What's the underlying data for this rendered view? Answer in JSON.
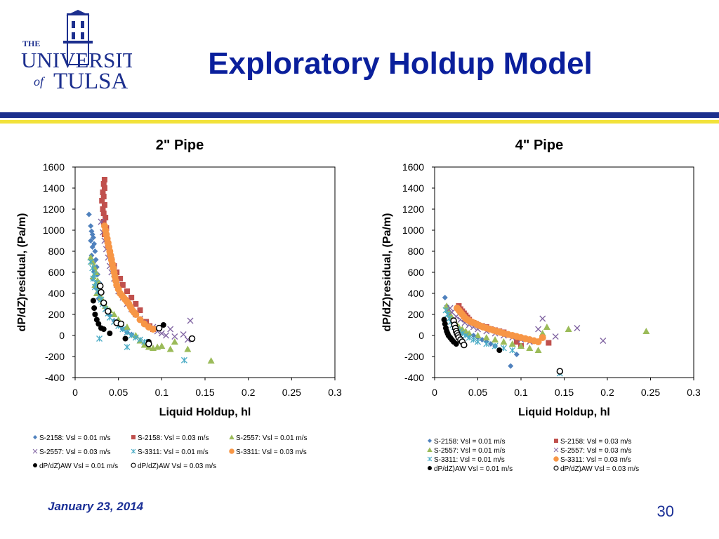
{
  "slide": {
    "title": "Exploratory Holdup Model",
    "date": "January 23, 2014",
    "page_number": "30",
    "logo": {
      "line1": "THE",
      "line2": "UNIVERSITY",
      "line3": "of",
      "line4": "TULSA"
    }
  },
  "colors": {
    "title": "#0a1f9c",
    "bar_navy": "#1c2f8e",
    "bar_yellow": "#f2e23a",
    "s2158_01": "#4f81bd",
    "s2158_03": "#c0504d",
    "s2557_01": "#9bbb59",
    "s2557_03": "#8064a2",
    "s3311_01": "#4bacc6",
    "s3311_03": "#f79646",
    "aw": "#000000"
  },
  "chart_data": [
    {
      "type": "scatter",
      "title": "2\" Pipe",
      "xlabel": "Liquid Holdup, hl",
      "ylabel": "dP/dZ)residual, (Pa/m)",
      "xlim": [
        0,
        0.3
      ],
      "ylim": [
        -400,
        1600
      ],
      "xticks": [
        "0",
        "0.05",
        "0.1",
        "0.15",
        "0.2",
        "0.25",
        "0.3"
      ],
      "yticks": [
        "-400",
        "-200",
        "0",
        "200",
        "400",
        "600",
        "800",
        "1000",
        "1200",
        "1400",
        "1600"
      ],
      "grid": false,
      "legend_position": "bottom",
      "series": [
        {
          "name": "S-2158: Vsl = 0.01 m/s",
          "marker": "diamond",
          "color": "#4f81bd",
          "x": [
            0.016,
            0.018,
            0.019,
            0.02,
            0.021,
            0.018,
            0.022,
            0.02,
            0.023,
            0.019,
            0.024,
            0.021,
            0.025,
            0.022,
            0.026,
            0.02,
            0.028,
            0.024,
            0.03,
            0.027,
            0.033,
            0.036,
            0.04,
            0.045,
            0.05,
            0.055,
            0.06,
            0.065,
            0.07
          ],
          "y": [
            1150,
            1040,
            990,
            960,
            930,
            900,
            870,
            840,
            800,
            760,
            720,
            690,
            650,
            610,
            580,
            540,
            500,
            450,
            400,
            350,
            290,
            240,
            190,
            140,
            100,
            60,
            30,
            10,
            -10
          ]
        },
        {
          "name": "S-2158: Vsl = 0.03 m/s",
          "marker": "square",
          "color": "#c0504d",
          "x": [
            0.034,
            0.033,
            0.034,
            0.032,
            0.033,
            0.031,
            0.034,
            0.032,
            0.033,
            0.035,
            0.033,
            0.036,
            0.034,
            0.037,
            0.038,
            0.04,
            0.042,
            0.045,
            0.048,
            0.052,
            0.055,
            0.06,
            0.065,
            0.07,
            0.075,
            0.082,
            0.086,
            0.09
          ],
          "y": [
            1480,
            1440,
            1400,
            1360,
            1320,
            1280,
            1240,
            1200,
            1160,
            1120,
            1080,
            1020,
            960,
            900,
            850,
            780,
            720,
            660,
            600,
            540,
            480,
            420,
            360,
            300,
            240,
            130,
            90,
            60
          ]
        },
        {
          "name": "S-2557: Vsl = 0.01 m/s",
          "marker": "triangle",
          "color": "#9bbb59",
          "x": [
            0.018,
            0.02,
            0.022,
            0.024,
            0.021,
            0.026,
            0.023,
            0.028,
            0.025,
            0.03,
            0.032,
            0.035,
            0.04,
            0.045,
            0.05,
            0.06,
            0.07,
            0.075,
            0.08,
            0.085,
            0.09,
            0.095,
            0.1,
            0.11,
            0.115,
            0.13,
            0.157
          ],
          "y": [
            740,
            700,
            650,
            600,
            560,
            520,
            480,
            440,
            400,
            360,
            320,
            280,
            240,
            200,
            150,
            80,
            0,
            -50,
            -90,
            -110,
            -120,
            -110,
            -100,
            -130,
            -60,
            -130,
            -240
          ]
        },
        {
          "name": "S-2557: Vsl = 0.03 m/s",
          "marker": "x",
          "color": "#8064a2",
          "x": [
            0.03,
            0.032,
            0.034,
            0.036,
            0.038,
            0.04,
            0.042,
            0.045,
            0.048,
            0.05,
            0.055,
            0.06,
            0.065,
            0.07,
            0.075,
            0.08,
            0.09,
            0.095,
            0.1,
            0.105,
            0.11,
            0.115,
            0.125,
            0.13,
            0.133
          ],
          "y": [
            1080,
            980,
            900,
            820,
            740,
            660,
            600,
            540,
            480,
            420,
            360,
            300,
            250,
            200,
            160,
            120,
            80,
            40,
            20,
            0,
            60,
            -10,
            10,
            -40,
            140
          ]
        },
        {
          "name": "S-3311: Vsl = 0.01 m/s",
          "marker": "star",
          "color": "#4bacc6",
          "x": [
            0.018,
            0.02,
            0.022,
            0.021,
            0.024,
            0.023,
            0.026,
            0.028,
            0.03,
            0.032,
            0.035,
            0.038,
            0.04,
            0.045,
            0.05,
            0.055,
            0.06,
            0.065,
            0.07,
            0.075,
            0.08,
            0.028,
            0.06,
            0.126
          ],
          "y": [
            700,
            640,
            580,
            540,
            500,
            460,
            420,
            380,
            340,
            300,
            250,
            210,
            170,
            130,
            90,
            60,
            30,
            0,
            -20,
            -40,
            -60,
            -30,
            -110,
            -235
          ]
        },
        {
          "name": "S-3311: Vsl = 0.03 m/s",
          "marker": "circle",
          "color": "#f79646",
          "x": [
            0.034,
            0.035,
            0.036,
            0.037,
            0.038,
            0.039,
            0.04,
            0.041,
            0.042,
            0.043,
            0.044,
            0.045,
            0.046,
            0.047,
            0.048,
            0.05,
            0.052,
            0.054,
            0.056,
            0.058,
            0.06,
            0.062,
            0.064,
            0.066,
            0.068,
            0.07,
            0.075,
            0.08,
            0.085,
            0.09
          ],
          "y": [
            1040,
            1000,
            960,
            920,
            880,
            840,
            800,
            760,
            720,
            680,
            640,
            600,
            560,
            520,
            480,
            440,
            400,
            380,
            360,
            340,
            320,
            300,
            270,
            240,
            220,
            200,
            150,
            110,
            80,
            60
          ]
        },
        {
          "name": "dP/dZ)AW Vsl = 0.01 m/s",
          "marker": "dot",
          "color": "#000000",
          "x": [
            0.021,
            0.022,
            0.023,
            0.025,
            0.027,
            0.03,
            0.033,
            0.04,
            0.058,
            0.085,
            0.102
          ],
          "y": [
            330,
            260,
            200,
            150,
            110,
            70,
            60,
            20,
            -30,
            -60,
            100
          ]
        },
        {
          "name": "dP/dZ)AW Vsl = 0.03 m/s",
          "marker": "ring",
          "color": "#000000",
          "x": [
            0.029,
            0.03,
            0.033,
            0.038,
            0.048,
            0.053,
            0.085,
            0.097,
            0.135
          ],
          "y": [
            470,
            410,
            310,
            230,
            120,
            110,
            -80,
            70,
            -30
          ]
        }
      ]
    },
    {
      "type": "scatter",
      "title": "4\" Pipe",
      "xlabel": "Liquid Holdup, hl",
      "ylabel": "dP/dZ)residual, (Pa/m)",
      "xlim": [
        0,
        0.3
      ],
      "ylim": [
        -400,
        1600
      ],
      "xticks": [
        "0",
        "0.05",
        "0.1",
        "0.15",
        "0.2",
        "0.25",
        "0.3"
      ],
      "yticks": [
        "-400",
        "-200",
        "0",
        "200",
        "400",
        "600",
        "800",
        "1000",
        "1200",
        "1400",
        "1600"
      ],
      "grid": false,
      "legend_position": "bottom",
      "series": [
        {
          "name": "S-2158: Vsl = 0.01 m/s",
          "marker": "diamond",
          "color": "#4f81bd",
          "x": [
            0.012,
            0.014,
            0.016,
            0.018,
            0.02,
            0.022,
            0.025,
            0.028,
            0.032,
            0.036,
            0.04,
            0.045,
            0.05,
            0.055,
            0.06,
            0.065,
            0.07,
            0.088,
            0.095
          ],
          "y": [
            360,
            280,
            220,
            180,
            150,
            120,
            90,
            70,
            50,
            30,
            10,
            0,
            -20,
            -40,
            -60,
            -80,
            -100,
            -290,
            -180
          ]
        },
        {
          "name": "S-2158: Vsl = 0.03 m/s",
          "marker": "square",
          "color": "#c0504d",
          "x": [
            0.028,
            0.03,
            0.032,
            0.034,
            0.036,
            0.038,
            0.04,
            0.042,
            0.045,
            0.048,
            0.05,
            0.055,
            0.06,
            0.065,
            0.07,
            0.075,
            0.08,
            0.09,
            0.095,
            0.1,
            0.132
          ],
          "y": [
            280,
            250,
            230,
            210,
            190,
            170,
            150,
            130,
            120,
            110,
            100,
            90,
            80,
            60,
            50,
            40,
            30,
            0,
            -60,
            -100,
            -70
          ]
        },
        {
          "name": "S-2557: Vsl = 0.01 m/s",
          "marker": "triangle",
          "color": "#9bbb59",
          "x": [
            0.014,
            0.016,
            0.018,
            0.02,
            0.022,
            0.025,
            0.028,
            0.032,
            0.036,
            0.04,
            0.05,
            0.06,
            0.07,
            0.08,
            0.09,
            0.1,
            0.11,
            0.12,
            0.125,
            0.13,
            0.155,
            0.245
          ],
          "y": [
            280,
            240,
            200,
            170,
            140,
            110,
            80,
            60,
            40,
            20,
            0,
            -20,
            -40,
            -60,
            -80,
            -100,
            -120,
            -140,
            20,
            80,
            60,
            40
          ]
        },
        {
          "name": "S-2557: Vsl = 0.03 m/s",
          "marker": "x",
          "color": "#8064a2",
          "x": [
            0.018,
            0.02,
            0.025,
            0.03,
            0.035,
            0.04,
            0.045,
            0.05,
            0.06,
            0.07,
            0.08,
            0.09,
            0.1,
            0.11,
            0.12,
            0.125,
            0.14,
            0.165,
            0.195
          ],
          "y": [
            260,
            220,
            180,
            150,
            120,
            100,
            80,
            60,
            40,
            20,
            0,
            -20,
            -40,
            -60,
            60,
            160,
            -10,
            70,
            -50
          ]
        },
        {
          "name": "S-3311: Vsl = 0.01 m/s",
          "marker": "star",
          "color": "#4bacc6",
          "x": [
            0.013,
            0.015,
            0.017,
            0.019,
            0.021,
            0.023,
            0.026,
            0.029,
            0.032,
            0.036,
            0.04,
            0.045,
            0.05,
            0.06,
            0.07,
            0.08,
            0.09,
            0.145
          ],
          "y": [
            240,
            200,
            160,
            130,
            100,
            80,
            60,
            40,
            20,
            0,
            -20,
            -40,
            -60,
            -80,
            -100,
            -120,
            -140,
            -360
          ]
        },
        {
          "name": "S-3311: Vsl = 0.03 m/s",
          "marker": "circle",
          "color": "#f79646",
          "x": [
            0.026,
            0.028,
            0.03,
            0.032,
            0.034,
            0.036,
            0.038,
            0.04,
            0.042,
            0.045,
            0.048,
            0.05,
            0.053,
            0.056,
            0.06,
            0.064,
            0.068,
            0.072,
            0.076,
            0.08,
            0.085,
            0.09,
            0.095,
            0.1,
            0.105,
            0.11,
            0.115,
            0.12,
            0.125
          ],
          "y": [
            260,
            240,
            220,
            200,
            180,
            160,
            150,
            140,
            130,
            120,
            110,
            100,
            90,
            80,
            70,
            60,
            50,
            40,
            30,
            20,
            10,
            0,
            -10,
            -20,
            -30,
            -40,
            -50,
            -60,
            -20
          ]
        },
        {
          "name": "dP/dZ)AW Vsl = 0.01 m/s",
          "marker": "dot",
          "color": "#000000",
          "x": [
            0.011,
            0.012,
            0.013,
            0.014,
            0.015,
            0.016,
            0.018,
            0.02,
            0.022,
            0.025,
            0.075
          ],
          "y": [
            150,
            110,
            70,
            40,
            20,
            0,
            -20,
            -40,
            -60,
            -80,
            -140
          ]
        },
        {
          "name": "dP/dZ)AW Vsl = 0.03 m/s",
          "marker": "ring",
          "color": "#000000",
          "x": [
            0.022,
            0.023,
            0.024,
            0.025,
            0.026,
            0.027,
            0.028,
            0.03,
            0.032,
            0.034,
            0.145
          ],
          "y": [
            140,
            100,
            70,
            40,
            20,
            0,
            -20,
            -40,
            -60,
            -90,
            -340
          ]
        }
      ]
    }
  ]
}
